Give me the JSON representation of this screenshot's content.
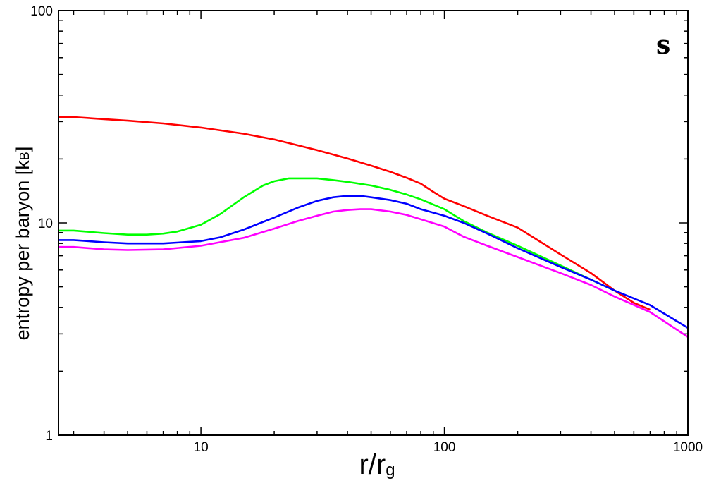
{
  "chart_data": {
    "type": "line",
    "panel_label": "s",
    "xlabel": "r/r",
    "xlabel_sub": "g",
    "ylabel": "entropy per baryon [k",
    "ylabel_sub": "B",
    "ylabel_end": "]",
    "xscale": "log",
    "yscale": "log",
    "xlim": [
      2.6,
      1000
    ],
    "ylim": [
      1,
      100
    ],
    "xticks": [
      10,
      100,
      1000
    ],
    "xtick_labels": [
      "10",
      "100",
      "1000"
    ],
    "yticks": [
      1,
      10,
      100
    ],
    "ytick_labels": [
      "1",
      "10",
      "100"
    ],
    "grid": false,
    "series": [
      {
        "color": "#ff0000",
        "x": [
          2.6,
          3,
          4,
          5,
          7,
          10,
          15,
          20,
          30,
          40,
          50,
          60,
          70,
          80,
          90,
          100,
          120,
          150,
          200,
          300,
          400,
          500,
          600,
          700
        ],
        "y": [
          31.5,
          31.5,
          30.8,
          30.3,
          29.4,
          28.1,
          26.3,
          24.7,
          22.0,
          20.1,
          18.6,
          17.4,
          16.3,
          15.3,
          14.0,
          13.0,
          12.0,
          10.8,
          9.5,
          7.1,
          5.8,
          4.8,
          4.2,
          3.9
        ]
      },
      {
        "color": "#00ff00",
        "x": [
          2.6,
          3,
          4,
          5,
          6,
          7,
          8,
          10,
          12,
          15,
          18,
          20,
          23,
          30,
          35,
          40,
          50,
          60,
          70,
          80,
          100,
          120,
          150,
          200,
          300,
          400,
          500
        ],
        "y": [
          9.2,
          9.2,
          8.95,
          8.8,
          8.8,
          8.9,
          9.1,
          9.8,
          11.0,
          13.2,
          15.0,
          15.7,
          16.2,
          16.2,
          15.9,
          15.6,
          15.0,
          14.3,
          13.6,
          12.9,
          11.6,
          10.2,
          9.0,
          7.8,
          6.3,
          5.4,
          4.8
        ]
      },
      {
        "color": "#0000ff",
        "x": [
          2.6,
          3,
          4,
          5,
          7,
          10,
          12,
          15,
          20,
          25,
          30,
          35,
          40,
          45,
          50,
          60,
          70,
          80,
          100,
          120,
          150,
          200,
          300,
          400,
          500,
          700,
          1000
        ],
        "y": [
          8.3,
          8.3,
          8.1,
          8.0,
          8.0,
          8.2,
          8.55,
          9.3,
          10.6,
          11.8,
          12.7,
          13.2,
          13.4,
          13.4,
          13.2,
          12.8,
          12.3,
          11.6,
          10.8,
          10.0,
          8.9,
          7.6,
          6.2,
          5.4,
          4.8,
          4.1,
          3.2
        ]
      },
      {
        "color": "#ff00ff",
        "x": [
          2.6,
          3,
          4,
          5,
          7,
          10,
          15,
          20,
          25,
          30,
          35,
          40,
          45,
          50,
          60,
          70,
          80,
          100,
          120,
          150,
          200,
          300,
          400,
          500,
          700,
          1000
        ],
        "y": [
          7.7,
          7.7,
          7.5,
          7.45,
          7.5,
          7.8,
          8.5,
          9.4,
          10.2,
          10.8,
          11.3,
          11.5,
          11.6,
          11.6,
          11.3,
          10.9,
          10.4,
          9.6,
          8.6,
          7.8,
          6.9,
          5.8,
          5.1,
          4.5,
          3.8,
          2.9
        ]
      }
    ]
  }
}
